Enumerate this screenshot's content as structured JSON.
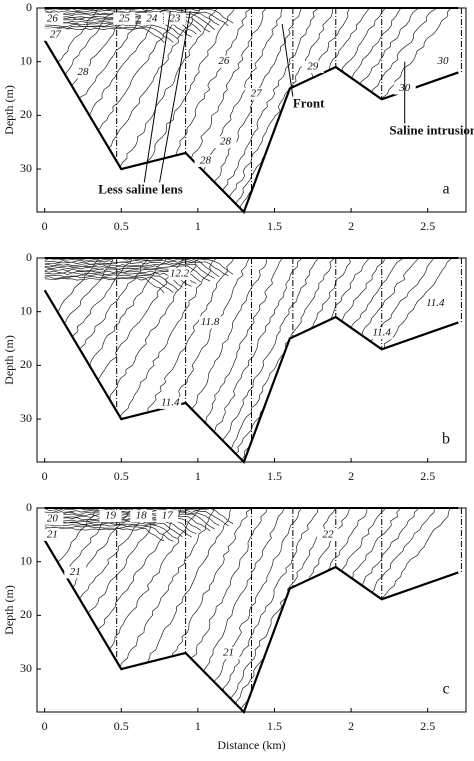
{
  "chart_data": [
    {
      "type": "contour",
      "panel_label": "a",
      "ylabel": "Depth (m)",
      "xlim": [
        -0.05,
        2.75
      ],
      "xticks": [
        0,
        0.5,
        1,
        1.5,
        2,
        2.5
      ],
      "ylim": [
        0,
        38
      ],
      "yticks": [
        0,
        10,
        20,
        30
      ],
      "bottom": {
        "x": [
          0,
          0.5,
          0.92,
          1.3,
          1.6,
          1.9,
          2.2,
          2.7
        ],
        "depth": [
          6,
          30,
          27,
          38,
          15,
          11,
          17,
          12
        ]
      },
      "stations": [
        0.47,
        0.92,
        1.35,
        1.62,
        1.9,
        2.2,
        2.72
      ],
      "contour_labels": [
        {
          "value": 26,
          "x": 0.05,
          "y": 2
        },
        {
          "value": 27,
          "x": 0.07,
          "y": 5
        },
        {
          "value": 28,
          "x": 0.25,
          "y": 12
        },
        {
          "value": 25,
          "x": 0.52,
          "y": 2
        },
        {
          "value": 24,
          "x": 0.7,
          "y": 2
        },
        {
          "value": 23,
          "x": 0.85,
          "y": 2
        },
        {
          "value": 26,
          "x": 1.17,
          "y": 10
        },
        {
          "value": 27,
          "x": 1.38,
          "y": 16
        },
        {
          "value": 28,
          "x": 1.18,
          "y": 25
        },
        {
          "value": 28,
          "x": 1.05,
          "y": 28.5
        },
        {
          "value": 29,
          "x": 1.75,
          "y": 11
        },
        {
          "value": 30,
          "x": 2.35,
          "y": 15
        },
        {
          "value": 30,
          "x": 2.6,
          "y": 10
        }
      ],
      "annotations": [
        {
          "text": "Less saline lens",
          "x": 0.35,
          "y": 34
        },
        {
          "text": "Front",
          "x": 1.62,
          "y": 18
        },
        {
          "text": "Saline intrusion",
          "x": 2.25,
          "y": 23
        }
      ]
    },
    {
      "type": "contour",
      "panel_label": "b",
      "ylabel": "Depth (m)",
      "xlim": [
        -0.05,
        2.75
      ],
      "xticks": [
        0,
        0.5,
        1,
        1.5,
        2,
        2.5
      ],
      "ylim": [
        0,
        38
      ],
      "yticks": [
        0,
        10,
        20,
        30
      ],
      "bottom": {
        "x": [
          0,
          0.5,
          0.92,
          1.3,
          1.6,
          1.9,
          2.2,
          2.7
        ],
        "depth": [
          6,
          30,
          27,
          38,
          15,
          11,
          17,
          12
        ]
      },
      "stations": [
        0.47,
        0.92,
        1.35,
        1.62,
        1.9,
        2.2,
        2.72
      ],
      "contour_labels": [
        {
          "value": 12.2,
          "x": 0.88,
          "y": 3
        },
        {
          "value": 11.8,
          "x": 1.08,
          "y": 12
        },
        {
          "value": 11.4,
          "x": 0.82,
          "y": 27
        },
        {
          "value": 11.4,
          "x": 2.2,
          "y": 14
        },
        {
          "value": 11.4,
          "x": 2.55,
          "y": 8.5
        }
      ],
      "annotations": []
    },
    {
      "type": "contour",
      "panel_label": "c",
      "ylabel": "Depth (m)",
      "xlabel": "Distance (km)",
      "xlim": [
        -0.05,
        2.75
      ],
      "xticks": [
        0,
        0.5,
        1,
        1.5,
        2,
        2.5
      ],
      "ylim": [
        0,
        38
      ],
      "yticks": [
        0,
        10,
        20,
        30
      ],
      "bottom": {
        "x": [
          0,
          0.5,
          0.92,
          1.3,
          1.6,
          1.9,
          2.2,
          2.7
        ],
        "depth": [
          6,
          30,
          27,
          38,
          15,
          11,
          17,
          12
        ]
      },
      "stations": [
        0.47,
        0.92,
        1.35,
        1.62,
        1.9,
        2.2,
        2.72
      ],
      "contour_labels": [
        {
          "value": 20,
          "x": 0.05,
          "y": 2
        },
        {
          "value": 19,
          "x": 0.43,
          "y": 1.5
        },
        {
          "value": 18,
          "x": 0.63,
          "y": 1.5
        },
        {
          "value": 17,
          "x": 0.8,
          "y": 1.5
        },
        {
          "value": 21,
          "x": 0.05,
          "y": 5
        },
        {
          "value": 21,
          "x": 0.2,
          "y": 12
        },
        {
          "value": 22,
          "x": 1.85,
          "y": 5
        },
        {
          "value": 21,
          "x": 1.2,
          "y": 27
        }
      ],
      "annotations": []
    }
  ]
}
